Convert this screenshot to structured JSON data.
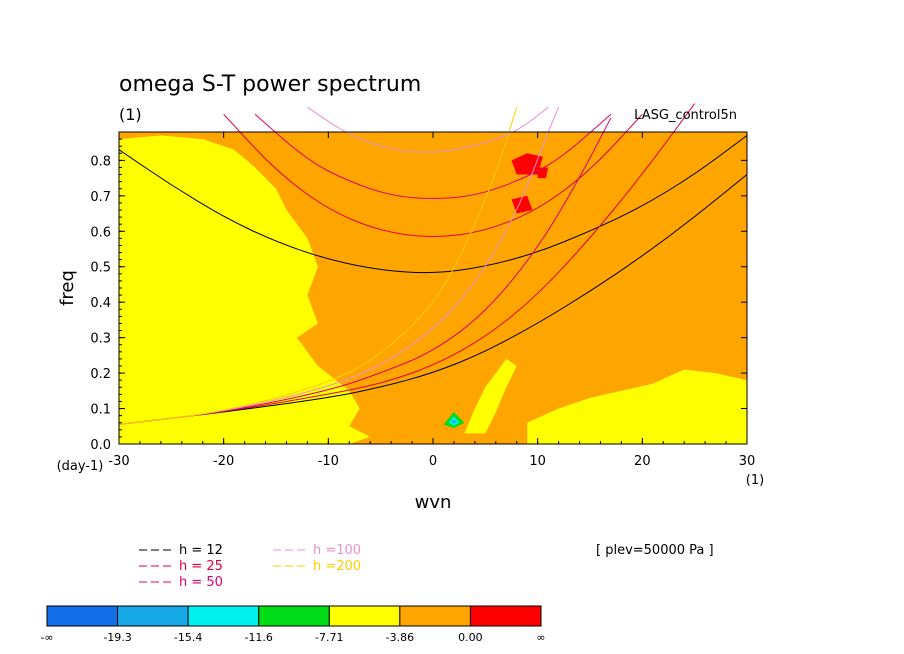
{
  "chart_data": {
    "type": "heatmap",
    "title": "omega S-T power spectrum",
    "subtitle": "(1)",
    "dataset_label": "LASG_control5n",
    "xlabel": "wvn",
    "ylabel": "freq",
    "x_unit": "(1)",
    "y_unit": "(day-1)",
    "xlim": [
      -30,
      30
    ],
    "ylim": [
      0,
      0.88
    ],
    "xticks": [
      "-30",
      "-20",
      "-10",
      "0",
      "10",
      "20",
      "30"
    ],
    "yticks": [
      "0.0",
      "0.1",
      "0.2",
      "0.3",
      "0.4",
      "0.5",
      "0.6",
      "0.7",
      "0.8"
    ],
    "level_note": "[ plev=50000 Pa ]",
    "colorbar": {
      "labels": [
        "-∞",
        "-19.3",
        "-15.4",
        "-11.6",
        "-7.71",
        "-3.86",
        "0.00",
        "∞"
      ],
      "colors": [
        "#0f6ee8",
        "#17a8e8",
        "#00f0f0",
        "#00dc18",
        "#ffff00",
        "#ffa500",
        "#ff0000"
      ]
    },
    "background_level_color": "#ffa500",
    "regions": [
      {
        "name": "yellow-west-band",
        "color": "#ffff00",
        "polygon": [
          [
            -30,
            0.86
          ],
          [
            -26,
            0.87
          ],
          [
            -22,
            0.86
          ],
          [
            -19,
            0.83
          ],
          [
            -17,
            0.78
          ],
          [
            -15,
            0.72
          ],
          [
            -14,
            0.66
          ],
          [
            -12,
            0.58
          ],
          [
            -11,
            0.5
          ],
          [
            -12,
            0.42
          ],
          [
            -11,
            0.34
          ],
          [
            -13,
            0.3
          ],
          [
            -11,
            0.22
          ],
          [
            -8,
            0.15
          ],
          [
            -7,
            0.1
          ],
          [
            -8,
            0.05
          ],
          [
            -6,
            0.02
          ],
          [
            -8,
            0
          ],
          [
            -30,
            0
          ]
        ]
      },
      {
        "name": "yellow-east-low",
        "color": "#ffff00",
        "polygon": [
          [
            9,
            0
          ],
          [
            9,
            0.06
          ],
          [
            12,
            0.1
          ],
          [
            15,
            0.13
          ],
          [
            18,
            0.15
          ],
          [
            21,
            0.17
          ],
          [
            24,
            0.21
          ],
          [
            27,
            0.2
          ],
          [
            30,
            0.18
          ],
          [
            30,
            0
          ]
        ]
      },
      {
        "name": "yellow-ridge",
        "color": "#ffff00",
        "polygon": [
          [
            3,
            0.03
          ],
          [
            4,
            0.1
          ],
          [
            5,
            0.16
          ],
          [
            7,
            0.24
          ],
          [
            8,
            0.22
          ],
          [
            7,
            0.16
          ],
          [
            6,
            0.09
          ],
          [
            5,
            0.03
          ]
        ]
      },
      {
        "name": "red-patch-1",
        "color": "#ff0000",
        "polygon": [
          [
            7.5,
            0.8
          ],
          [
            9,
            0.82
          ],
          [
            10.5,
            0.81
          ],
          [
            10,
            0.76
          ],
          [
            8,
            0.76
          ]
        ]
      },
      {
        "name": "red-patch-2",
        "color": "#ff0000",
        "polygon": [
          [
            7.5,
            0.69
          ],
          [
            9,
            0.7
          ],
          [
            9.5,
            0.66
          ],
          [
            8,
            0.65
          ]
        ]
      },
      {
        "name": "red-patch-3",
        "color": "#ff0000",
        "polygon": [
          [
            10,
            0.78
          ],
          [
            11,
            0.78
          ],
          [
            10.8,
            0.75
          ],
          [
            10,
            0.75
          ]
        ]
      },
      {
        "name": "green-spot",
        "color": "#00dc18",
        "polygon": [
          [
            1,
            0.055
          ],
          [
            2,
            0.09
          ],
          [
            3,
            0.06
          ],
          [
            2,
            0.045
          ]
        ]
      },
      {
        "name": "cyan-spot",
        "color": "#00f0f0",
        "polygon": [
          [
            1.5,
            0.06
          ],
          [
            2,
            0.078
          ],
          [
            2.5,
            0.06
          ],
          [
            2,
            0.052
          ]
        ]
      },
      {
        "name": "blue-spot",
        "color": "#17a8e8",
        "polygon": [
          [
            1.8,
            0.062
          ],
          [
            2,
            0.07
          ],
          [
            2.2,
            0.062
          ],
          [
            2,
            0.058
          ]
        ]
      }
    ],
    "dispersion_curves": [
      {
        "name": "h = 12",
        "color": "#000000",
        "points": [
          [
            -30,
            0.83
          ],
          [
            -25,
            0.73
          ],
          [
            -20,
            0.64
          ],
          [
            -15,
            0.57
          ],
          [
            -10,
            0.52
          ],
          [
            -5,
            0.49
          ],
          [
            0,
            0.48
          ],
          [
            5,
            0.5
          ],
          [
            10,
            0.54
          ],
          [
            15,
            0.6
          ],
          [
            20,
            0.67
          ],
          [
            25,
            0.76
          ],
          [
            30,
            0.87
          ]
        ]
      },
      {
        "name": "h = 12",
        "color": "#000000",
        "points": [
          [
            -30,
            0.055
          ],
          [
            -20,
            0.09
          ],
          [
            -10,
            0.13
          ],
          [
            -5,
            0.16
          ],
          [
            0,
            0.2
          ],
          [
            5,
            0.26
          ],
          [
            10,
            0.34
          ],
          [
            15,
            0.43
          ],
          [
            20,
            0.53
          ],
          [
            25,
            0.64
          ],
          [
            30,
            0.76
          ]
        ]
      },
      {
        "name": "h = 25",
        "color": "#e0003c",
        "points": [
          [
            -20,
            0.93
          ],
          [
            -15,
            0.77
          ],
          [
            -10,
            0.66
          ],
          [
            -5,
            0.6
          ],
          [
            0,
            0.58
          ],
          [
            5,
            0.6
          ],
          [
            10,
            0.66
          ],
          [
            15,
            0.77
          ],
          [
            20,
            0.93
          ]
        ]
      },
      {
        "name": "h = 25",
        "color": "#e0003c",
        "points": [
          [
            -30,
            0.055
          ],
          [
            -20,
            0.09
          ],
          [
            -10,
            0.14
          ],
          [
            -5,
            0.17
          ],
          [
            0,
            0.22
          ],
          [
            5,
            0.3
          ],
          [
            10,
            0.42
          ],
          [
            15,
            0.58
          ],
          [
            20,
            0.76
          ],
          [
            25,
            0.96
          ]
        ]
      },
      {
        "name": "h = 50",
        "color": "#e0006e",
        "points": [
          [
            -17,
            0.93
          ],
          [
            -12,
            0.8
          ],
          [
            -8,
            0.74
          ],
          [
            -4,
            0.7
          ],
          [
            0,
            0.69
          ],
          [
            4,
            0.7
          ],
          [
            8,
            0.74
          ],
          [
            12,
            0.8
          ],
          [
            17,
            0.93
          ]
        ]
      },
      {
        "name": "h = 50",
        "color": "#e0006e",
        "points": [
          [
            -30,
            0.055
          ],
          [
            -20,
            0.09
          ],
          [
            -10,
            0.15
          ],
          [
            -5,
            0.2
          ],
          [
            0,
            0.26
          ],
          [
            5,
            0.37
          ],
          [
            10,
            0.55
          ],
          [
            14,
            0.75
          ],
          [
            17,
            0.92
          ]
        ]
      },
      {
        "name": "h =100",
        "color": "#e890d0",
        "points": [
          [
            -12,
            0.95
          ],
          [
            -8,
            0.87
          ],
          [
            -4,
            0.83
          ],
          [
            0,
            0.82
          ],
          [
            4,
            0.84
          ],
          [
            8,
            0.88
          ],
          [
            11,
            0.95
          ]
        ]
      },
      {
        "name": "h =100",
        "color": "#e890d0",
        "points": [
          [
            -30,
            0.055
          ],
          [
            -20,
            0.09
          ],
          [
            -10,
            0.16
          ],
          [
            -5,
            0.22
          ],
          [
            0,
            0.32
          ],
          [
            4,
            0.45
          ],
          [
            8,
            0.65
          ],
          [
            11,
            0.88
          ],
          [
            12,
            0.95
          ]
        ]
      },
      {
        "name": "h =200",
        "color": "#ffcc00",
        "points": [
          [
            -30,
            0.055
          ],
          [
            -20,
            0.09
          ],
          [
            -10,
            0.17
          ],
          [
            -5,
            0.25
          ],
          [
            0,
            0.39
          ],
          [
            3,
            0.55
          ],
          [
            6,
            0.76
          ],
          [
            8,
            0.95
          ]
        ]
      }
    ],
    "legend": [
      {
        "label": "h = 12",
        "color": "#000000"
      },
      {
        "label": "h = 25",
        "color": "#e0003c"
      },
      {
        "label": "h = 50",
        "color": "#e0006e"
      },
      {
        "label": "h =100",
        "color": "#e890d0"
      },
      {
        "label": "h =200",
        "color": "#ffcc00"
      }
    ]
  }
}
